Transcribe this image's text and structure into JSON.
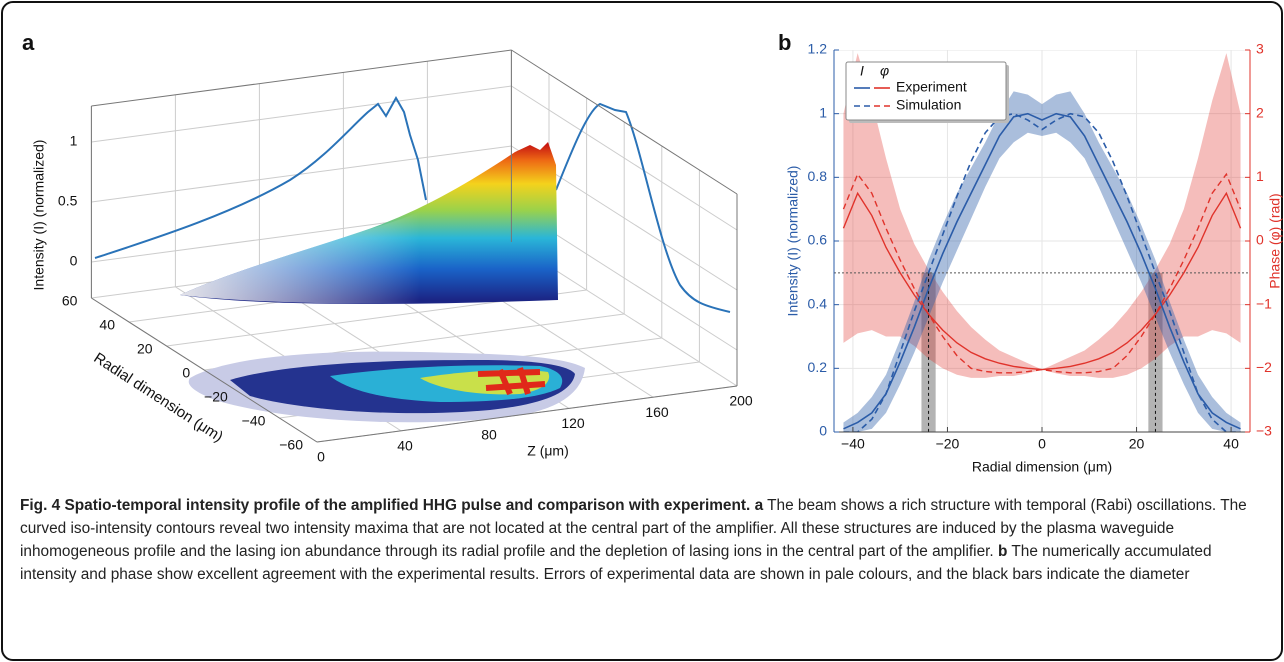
{
  "chart_data": [
    {
      "type": "surface3d",
      "panel_label": "a",
      "zlabel": "Intensity (I) (normalized)",
      "ylabel": "Radial dimension (μm)",
      "xlabel": "Z (μm)",
      "xlim": [
        0,
        200
      ],
      "xticks": [
        0,
        40,
        80,
        120,
        160,
        200
      ],
      "ylim": [
        -60,
        60
      ],
      "yticks": [
        {
          "value": -60,
          "label": "−60"
        },
        {
          "value": -40,
          "label": "−40"
        },
        {
          "value": -20,
          "label": "−20"
        },
        0,
        20,
        40,
        60
      ],
      "zlim": [
        -0.3,
        1.3
      ],
      "zticks": [
        0,
        0.5,
        1
      ],
      "grid": true
    },
    {
      "type": "line",
      "panel_label": "b",
      "xlabel": "Radial dimension (μm)",
      "ylabel": "Intensity (I) (normalized)",
      "y2label": "Phase (φ) (rad)",
      "x": [
        -42,
        -39,
        -36,
        -33,
        -30,
        -27,
        -24,
        -21,
        -18,
        -15,
        -12,
        -9,
        -6,
        -3,
        0,
        3,
        6,
        9,
        12,
        15,
        18,
        21,
        24,
        27,
        30,
        33,
        36,
        39,
        42
      ],
      "xlim": [
        -44,
        44
      ],
      "xticks": [
        {
          "value": -40,
          "label": "−40"
        },
        {
          "value": -20,
          "label": "−20"
        },
        0,
        20,
        40
      ],
      "ylim": [
        0,
        1.2
      ],
      "yticks": [
        0,
        0.2,
        0.4,
        0.6,
        0.8,
        1,
        1.2
      ],
      "y2lim": [
        -3,
        3
      ],
      "y2ticks": [
        {
          "value": -3,
          "label": "−3"
        },
        {
          "value": -2,
          "label": "−2"
        },
        {
          "value": -1,
          "label": "−1"
        },
        0,
        1,
        2,
        3
      ],
      "color": "#2b5ca8",
      "y2_color": "#e0332b",
      "grid": true,
      "legend": {
        "headers": [
          "I",
          "φ"
        ],
        "position": "upper left"
      },
      "series": [
        {
          "name": "Experiment",
          "dash": "solid",
          "values": [
            0.01,
            0.03,
            0.06,
            0.12,
            0.22,
            0.33,
            0.45,
            0.56,
            0.66,
            0.75,
            0.84,
            0.93,
            0.99,
            1.0,
            0.98,
            1.0,
            0.99,
            0.93,
            0.84,
            0.75,
            0.66,
            0.56,
            0.45,
            0.33,
            0.22,
            0.12,
            0.06,
            0.03,
            0.01
          ],
          "errors": [
            0.02,
            0.03,
            0.05,
            0.06,
            0.07,
            0.08,
            0.09,
            0.09,
            0.09,
            0.08,
            0.07,
            0.07,
            0.08,
            0.06,
            0.05,
            0.06,
            0.08,
            0.07,
            0.07,
            0.08,
            0.09,
            0.09,
            0.09,
            0.08,
            0.07,
            0.06,
            0.05,
            0.03,
            0.02
          ],
          "phase": [
            0.2,
            0.75,
            0.4,
            -0.1,
            -0.5,
            -0.85,
            -1.15,
            -1.4,
            -1.6,
            -1.75,
            -1.85,
            -1.92,
            -1.97,
            -2.0,
            -2.02,
            -2.0,
            -1.97,
            -1.92,
            -1.85,
            -1.75,
            -1.6,
            -1.4,
            -1.15,
            -0.85,
            -0.5,
            -0.1,
            0.4,
            0.75,
            0.2
          ],
          "phase_errors": [
            1.8,
            2.2,
            1.8,
            1.4,
            1.0,
            0.8,
            0.7,
            0.6,
            0.5,
            0.4,
            0.3,
            0.2,
            0.15,
            0.08,
            0,
            0.08,
            0.15,
            0.2,
            0.3,
            0.4,
            0.5,
            0.6,
            0.7,
            0.8,
            1.0,
            1.4,
            1.8,
            2.2,
            1.8
          ]
        },
        {
          "name": "Simulation",
          "dash": "dashed",
          "values": [
            0,
            0,
            0.04,
            0.12,
            0.25,
            0.38,
            0.5,
            0.62,
            0.74,
            0.85,
            0.94,
            0.99,
            1.0,
            0.98,
            0.95,
            0.98,
            1.0,
            0.99,
            0.94,
            0.85,
            0.74,
            0.62,
            0.5,
            0.38,
            0.25,
            0.12,
            0.04,
            0,
            0
          ],
          "phase": [
            0.5,
            1.05,
            0.75,
            0.2,
            -0.3,
            -0.75,
            -1.15,
            -1.5,
            -1.8,
            -2.0,
            -2.05,
            -2.07,
            -2.07,
            -2.05,
            -2.02,
            -2.05,
            -2.07,
            -2.07,
            -2.05,
            -2.0,
            -1.8,
            -1.5,
            -1.15,
            -0.75,
            -0.3,
            0.2,
            0.75,
            1.05,
            0.5
          ]
        }
      ],
      "hline": 0.5,
      "vlines": [
        -24,
        24
      ],
      "spans": [
        [
          -25.5,
          -22.5
        ],
        [
          22.5,
          25.5
        ]
      ]
    }
  ],
  "caption": {
    "title": "Fig. 4 Spatio-temporal intensity profile of the amplified HHG pulse and comparison with experiment.",
    "parts": [
      {
        "label": "a",
        "text": "The beam shows a rich structure with temporal (Rabi) oscillations. The curved iso-intensity contours reveal two intensity maxima that are not located at the central part of the amplifier. All these structures are induced by the plasma waveguide inhomogeneous profile and the lasing ion abundance through its radial profile and the depletion of lasing ions in the central part of the amplifier."
      },
      {
        "label": "b",
        "text": "The numerically accumulated intensity and phase show excellent agreement with the experimental results. Errors of experimental data are shown in pale colours, and the black bars indicate the diameter"
      }
    ]
  }
}
